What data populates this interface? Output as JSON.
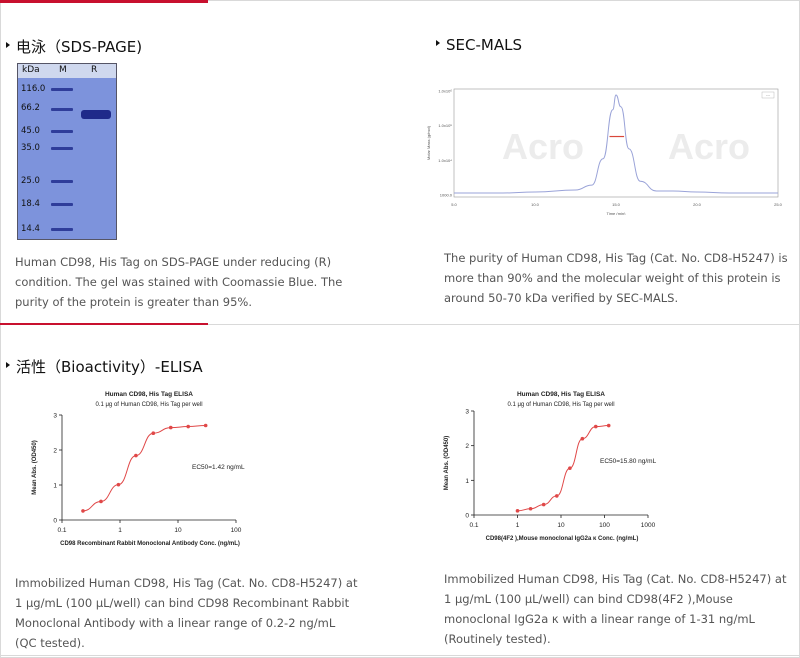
{
  "sections": {
    "sds": {
      "title": "电泳（SDS-PAGE)",
      "gel": {
        "header_kda": "kDa",
        "header_m": "M",
        "header_r": "R",
        "markers": [
          "116.0",
          "66.2",
          "45.0",
          "35.0",
          "25.0",
          "18.4",
          "14.4"
        ]
      },
      "caption": "Human CD98, His Tag on SDS-PAGE under reducing (R) condition. The gel was stained with Coomassie Blue. The purity of the protein is greater than 95%."
    },
    "secmals": {
      "title": "SEC-MALS",
      "caption": "The purity of Human CD98, His Tag (Cat. No. CD8-H5247) is more than 90% and the molecular weight of this protein is around 50-70 kDa verified by SEC-MALS."
    },
    "elisa": {
      "title": "活性（Bioactivity）-ELISA",
      "caption_left": "Immobilized Human CD98, His Tag (Cat. No. CD8-H5247) at 1 μg/mL (100 μL/well) can bind CD98 Recombinant Rabbit Monoclonal Antibody with a linear range of 0.2-2 ng/mL (QC tested).",
      "caption_right": "Immobilized Human CD98, His Tag (Cat. No. CD8-H5247) at 1 μg/mL (100 μL/well) can bind CD98(4F2 ),Mouse monoclonal IgG2a κ with a linear range of 1-31 ng/mL (Routinely tested)."
    }
  },
  "chart_data": [
    {
      "type": "line",
      "title": "",
      "xlabel": "Time (min)",
      "ylabel": "Molar Mass (g/mol)",
      "x_ticks": [
        "5.0",
        "10.0",
        "15.0",
        "20.0",
        "25.0"
      ],
      "y_ticks": [
        "1.0x10⁶",
        "1.0x10⁵",
        "1.0x10⁴",
        "1000.0"
      ],
      "xlim": [
        5,
        25
      ],
      "legend_label": "---",
      "series": [
        {
          "x": [
            5,
            8,
            10,
            12.5,
            13.5,
            14.2,
            14.8,
            15.0,
            15.3,
            15.8,
            16.5,
            17.5,
            18.5,
            20,
            22,
            25
          ],
          "values": [
            0,
            0,
            0.01,
            0.03,
            0.08,
            0.35,
            0.85,
            1.0,
            0.88,
            0.45,
            0.12,
            0.02,
            0.02,
            0.01,
            0.0,
            0.0
          ]
        }
      ],
      "molar_mass_segment": {
        "x": [
          14.6,
          15.5
        ],
        "molar_mass": 65000
      }
    },
    {
      "type": "scatter",
      "title": "Human CD98, His Tag ELISA",
      "subtitle": "0.1 μg of Human CD98, His Tag per well",
      "xlabel": "CD98 Recombinant Rabbit Monoclonal Antibody Conc. (ng/mL)",
      "ylabel": "Mean Abs. (OD450)",
      "x_scale": "log",
      "xlim": [
        0.1,
        100
      ],
      "ylim": [
        0,
        3
      ],
      "x_ticks": [
        "0.1",
        "1",
        "10",
        "100"
      ],
      "y_ticks": [
        "0",
        "1",
        "2",
        "3"
      ],
      "annotation": "EC50=1.42 ng/mL",
      "series": [
        {
          "x": [
            0.23,
            0.47,
            0.94,
            1.88,
            3.75,
            7.5,
            15,
            30
          ],
          "values": [
            0.26,
            0.53,
            1.01,
            1.84,
            2.48,
            2.64,
            2.67,
            2.7
          ]
        }
      ]
    },
    {
      "type": "scatter",
      "title": "Human CD98, His Tag ELISA",
      "subtitle": "0.1 μg of Human CD98, His Tag per well",
      "xlabel": "CD98(4F2 ),Mouse monoclonal IgG2a κ  Conc. (ng/mL)",
      "ylabel": "Mean Abs. (OD450)",
      "x_scale": "log",
      "xlim": [
        0.1,
        1000
      ],
      "ylim": [
        0,
        3
      ],
      "x_ticks": [
        "0.1",
        "1",
        "10",
        "100",
        "1000"
      ],
      "y_ticks": [
        "0",
        "1",
        "2",
        "3"
      ],
      "annotation": "EC50=15.80 ng/mL",
      "series": [
        {
          "x": [
            1,
            2,
            4,
            8,
            16,
            31,
            63,
            125
          ],
          "values": [
            0.12,
            0.18,
            0.3,
            0.55,
            1.35,
            2.2,
            2.55,
            2.58
          ]
        }
      ]
    }
  ]
}
